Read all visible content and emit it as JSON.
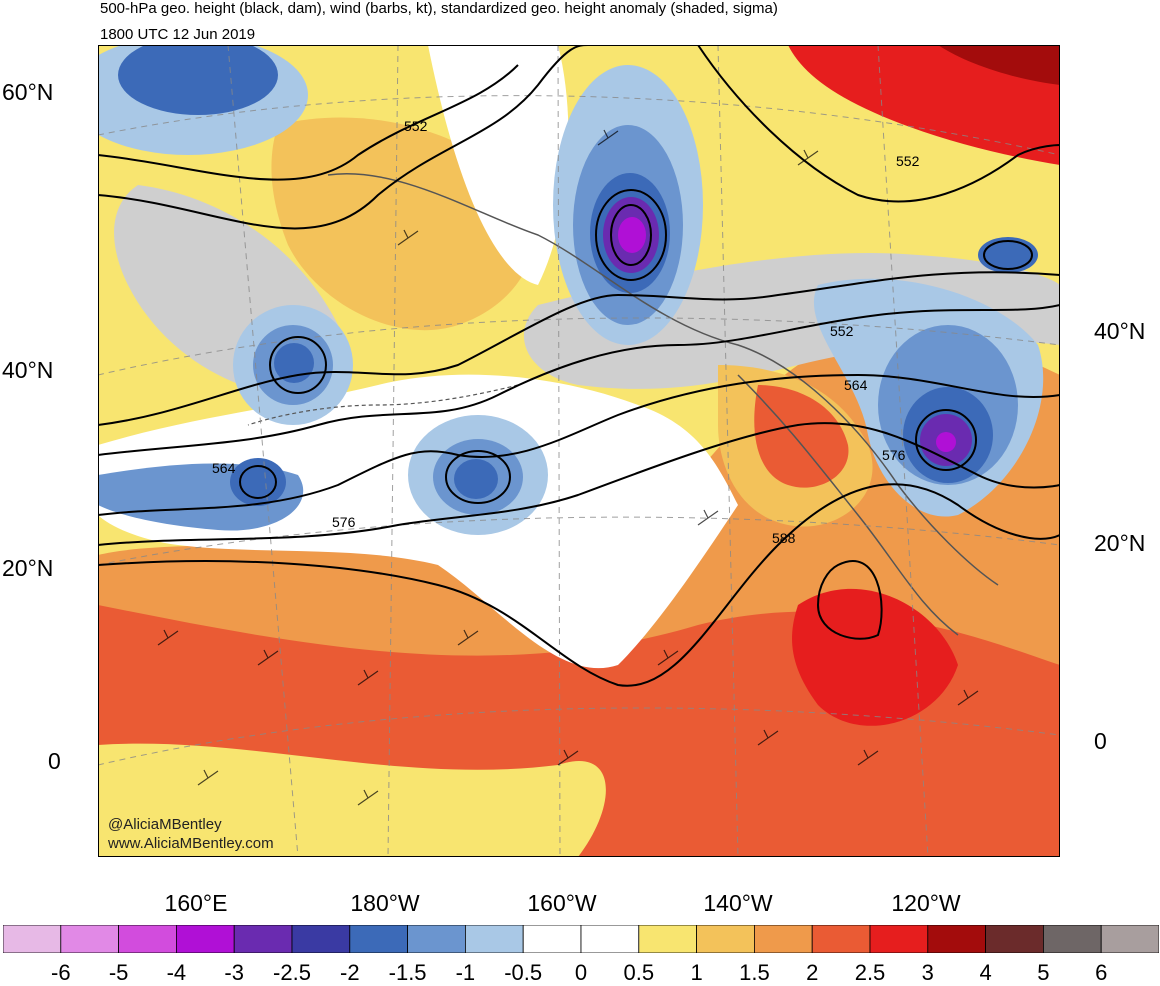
{
  "title": {
    "line1": "500-hPa geo. height (black, dam), wind (barbs, kt), standardized geo. height anomaly (shaded, sigma)",
    "line2": "1800 UTC 12 Jun 2019"
  },
  "axes": {
    "left_lat_labels": [
      "60°N",
      "40°N",
      "20°N",
      "0"
    ],
    "right_lat_labels": [
      "40°N",
      "20°N",
      "0"
    ],
    "lon_labels": [
      "160°E",
      "180°W",
      "160°W",
      "140°W",
      "120°W"
    ]
  },
  "contour_labels": [
    "552",
    "552",
    "552",
    "564",
    "564",
    "576",
    "576",
    "588"
  ],
  "credits": {
    "twitter": "@AliciaMBentley",
    "website": "www.AliciaMBentley.com"
  },
  "colorbar": {
    "labels": [
      "-6",
      "-5",
      "-4",
      "-3",
      "-2.5",
      "-2",
      "-1.5",
      "-1",
      "-0.5",
      "0",
      "0.5",
      "1",
      "1.5",
      "2",
      "2.5",
      "3",
      "4",
      "5",
      "6"
    ],
    "colors": [
      "#e7b9e6",
      "#e189e6",
      "#d24cdd",
      "#b010d6",
      "#6a2bb0",
      "#3a3aa3",
      "#3c6ab8",
      "#6b95cf",
      "#a9c8e6",
      "#ffffff",
      "#ffffff",
      "#f8e570",
      "#f3c25a",
      "#ef9a4b",
      "#ea5b34",
      "#e61e1e",
      "#a30c0c",
      "#6b2b2b",
      "#6e6666",
      "#a89e9e"
    ]
  },
  "palette": {
    "grey_fill": "#cfcfcf",
    "coast": "#555555",
    "contour": "#000000",
    "grid": "#888888"
  }
}
